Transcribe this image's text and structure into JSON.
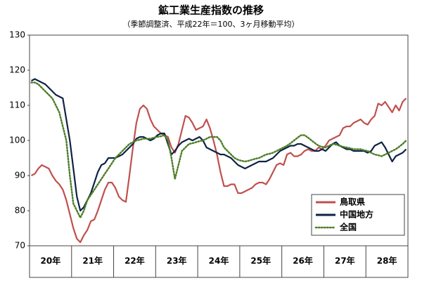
{
  "chart_data": {
    "type": "line",
    "title": "鉱工業生産指数の推移",
    "subtitle": "（季節調整済、平成22年＝100、3ヶ月移動平均）",
    "categories": [
      null,
      null,
      null,
      null,
      null,
      "20年",
      null,
      null,
      null,
      null,
      null,
      null,
      null,
      null,
      null,
      null,
      null,
      "21年",
      null,
      null,
      null,
      null,
      null,
      null,
      null,
      null,
      null,
      null,
      null,
      "22年",
      null,
      null,
      null,
      null,
      null,
      null,
      null,
      null,
      null,
      null,
      null,
      "23年",
      null,
      null,
      null,
      null,
      null,
      null,
      null,
      null,
      null,
      null,
      null,
      "24年",
      null,
      null,
      null,
      null,
      null,
      null,
      null,
      null,
      null,
      null,
      null,
      "25年",
      null,
      null,
      null,
      null,
      null,
      null,
      null,
      null,
      null,
      null,
      null,
      "26年",
      null,
      null,
      null,
      null,
      null,
      null,
      null,
      null,
      null,
      null,
      null,
      "27年",
      null,
      null,
      null,
      null,
      null,
      null,
      null,
      null,
      null,
      null,
      null,
      "28年",
      null,
      null,
      null,
      null,
      null,
      null
    ],
    "ylim": [
      70,
      130
    ],
    "yticks": [
      70,
      80,
      90,
      100,
      110,
      120,
      130
    ],
    "grid": false,
    "legend": "lower right",
    "series": [
      {
        "name": "鳥取県",
        "color": "#c0504d",
        "style": "solid",
        "values": [
          90,
          90.5,
          92,
          93,
          92.5,
          92,
          90,
          88.5,
          87.5,
          86,
          83,
          79,
          75,
          72,
          71,
          73,
          74.5,
          77,
          77.5,
          80,
          83,
          86,
          88,
          88,
          86.5,
          84,
          83,
          82.5,
          90,
          98,
          105,
          109,
          110,
          109,
          106,
          104,
          103,
          102,
          101.5,
          101,
          98,
          96.5,
          99,
          103,
          107,
          106.5,
          105,
          103,
          103.5,
          104,
          106,
          103.5,
          100,
          96,
          91,
          87,
          87,
          87.5,
          87.5,
          85,
          85,
          85.5,
          86,
          86.5,
          87.5,
          88,
          88,
          87.5,
          89,
          91,
          93,
          93.5,
          93,
          96,
          96.5,
          95.5,
          95.5,
          96,
          97,
          97.5,
          97,
          97,
          98,
          97.5,
          98.5,
          100,
          100.5,
          101,
          101.5,
          103.5,
          104,
          104,
          105,
          105.5,
          106,
          105,
          104.5,
          106,
          107,
          110.5,
          110,
          111,
          109.5,
          108,
          110,
          108.5,
          111,
          112
        ]
      },
      {
        "name": "中国地方",
        "color": "#0d2344",
        "style": "solid",
        "values": [
          117,
          117.5,
          117,
          116.5,
          116,
          115,
          114,
          113,
          112.5,
          112,
          106,
          100,
          92,
          84,
          80,
          81,
          83,
          85,
          88,
          91,
          93,
          93.5,
          95,
          95,
          95,
          95.5,
          96,
          97,
          98,
          99,
          100.5,
          101,
          101,
          100.5,
          100,
          100.5,
          101.5,
          102,
          102,
          99,
          96,
          97,
          98.5,
          99.5,
          100,
          100.5,
          100,
          100.5,
          101,
          100,
          98,
          97.5,
          97,
          96.5,
          96,
          96,
          95.5,
          95,
          94,
          93,
          92.5,
          92,
          92.5,
          93,
          93.5,
          94,
          94,
          94,
          94.5,
          95,
          96,
          97,
          97.5,
          98,
          98.5,
          98.5,
          99,
          99,
          98.5,
          98,
          97.5,
          97,
          97,
          97.5,
          97,
          98,
          99,
          99.5,
          98.5,
          98,
          97.5,
          97.5,
          97,
          97,
          97,
          97,
          96.5,
          97,
          98.5,
          99,
          99.5,
          98,
          96,
          94,
          95.5,
          96,
          96.5,
          97.5
        ]
      },
      {
        "name": "全国",
        "color": "#4f7f2a",
        "style": "dotted",
        "values": [
          116.5,
          116.5,
          116,
          115,
          114,
          113,
          112,
          110,
          108,
          104,
          100,
          90,
          82,
          80,
          78,
          80,
          83,
          84.5,
          86,
          87.5,
          89,
          90.5,
          92,
          93.5,
          95,
          96,
          97,
          98,
          99,
          99.5,
          100,
          100.2,
          100.5,
          100.5,
          100.5,
          100.8,
          101,
          101.2,
          101.5,
          100,
          95,
          89,
          93,
          97,
          98,
          99,
          99.2,
          99.5,
          99.8,
          100,
          100.5,
          101,
          101,
          101,
          100,
          98,
          97,
          96,
          95,
          94.5,
          94.2,
          94,
          94.2,
          94.5,
          94.8,
          95,
          95.5,
          96,
          96.2,
          96.5,
          97,
          97.5,
          98,
          98.5,
          99.2,
          100,
          100.8,
          101.5,
          101.5,
          100.8,
          100,
          99.2,
          98.5,
          98.2,
          98,
          98.5,
          99,
          98.8,
          98.5,
          98.2,
          98,
          97.8,
          97.5,
          97.5,
          97.5,
          97.2,
          97,
          96.5,
          96,
          95.8,
          95.5,
          96,
          96.5,
          97,
          97.5,
          98.2,
          99,
          100
        ]
      }
    ]
  }
}
